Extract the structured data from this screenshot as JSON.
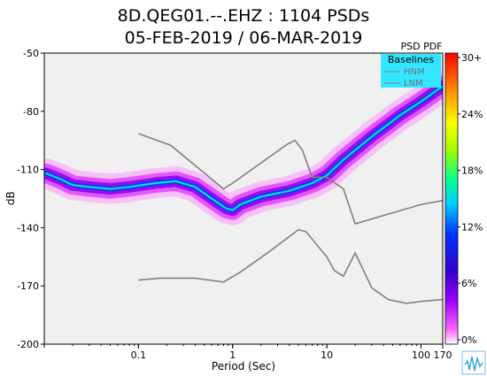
{
  "window": {
    "title_line1": "8D.QEG01.--.EHZ : 1104 PSDs",
    "title_line2": "05-FEB-2019 / 06-MAR-2019"
  },
  "colorbar": {
    "title": "PSD PDF",
    "ticks": [
      "30+",
      "24%",
      "18%",
      "12%",
      "6%",
      "0%"
    ]
  },
  "legend": {
    "title": "Baselines",
    "items": [
      "HNM",
      "LNM"
    ]
  },
  "chart_data": {
    "type": "heatmap",
    "title": "8D.QEG01.--.EHZ : 1104 PSDs",
    "subtitle": "05-FEB-2019 / 06-MAR-2019",
    "xlabel": "Period (Sec)",
    "ylabel": "dB",
    "xscale": "log",
    "xlim": [
      0.01,
      170
    ],
    "ylim": [
      -200,
      -50
    ],
    "xticks": [
      0.1,
      1,
      10,
      100,
      170
    ],
    "xtick_labels": [
      "0.1",
      "1",
      "10",
      "100",
      "170"
    ],
    "yticks": [
      -50,
      -80,
      -110,
      -140,
      -170,
      -200
    ],
    "ytick_labels": [
      "-50",
      "-80",
      "-110",
      "-140",
      "-170",
      "-200"
    ],
    "colorbar_range_percent": [
      0,
      30
    ],
    "pdf_mode_curve": [
      [
        0.0105,
        -112
      ],
      [
        0.015,
        -115
      ],
      [
        0.02,
        -118
      ],
      [
        0.03,
        -119
      ],
      [
        0.05,
        -120
      ],
      [
        0.08,
        -119
      ],
      [
        0.15,
        -117
      ],
      [
        0.25,
        -116
      ],
      [
        0.4,
        -119
      ],
      [
        0.6,
        -125
      ],
      [
        0.85,
        -130
      ],
      [
        1.0,
        -131
      ],
      [
        1.2,
        -128
      ],
      [
        2,
        -124
      ],
      [
        4,
        -121
      ],
      [
        7,
        -117
      ],
      [
        10,
        -113
      ],
      [
        15,
        -105
      ],
      [
        30,
        -93
      ],
      [
        60,
        -82
      ],
      [
        100,
        -75
      ],
      [
        170,
        -67
      ]
    ],
    "series": [
      {
        "name": "HNM",
        "values": [
          [
            0.1,
            -91.5
          ],
          [
            0.22,
            -97.5
          ],
          [
            0.8,
            -120
          ],
          [
            1.0,
            -117
          ],
          [
            3.8,
            -97
          ],
          [
            4.6,
            -95
          ],
          [
            5.5,
            -100
          ],
          [
            7.0,
            -114
          ],
          [
            10,
            -114
          ],
          [
            15,
            -120
          ],
          [
            20,
            -138
          ],
          [
            100,
            -128
          ],
          [
            170,
            -126
          ]
        ]
      },
      {
        "name": "LNM",
        "values": [
          [
            0.1,
            -167
          ],
          [
            0.17,
            -166
          ],
          [
            0.4,
            -166
          ],
          [
            0.8,
            -168
          ],
          [
            1.2,
            -163
          ],
          [
            2.5,
            -152
          ],
          [
            5.0,
            -141
          ],
          [
            6.0,
            -142
          ],
          [
            10,
            -155
          ],
          [
            12,
            -162
          ],
          [
            15,
            -165
          ],
          [
            20,
            -153
          ],
          [
            30,
            -171
          ],
          [
            45,
            -177
          ],
          [
            70,
            -179
          ],
          [
            100,
            -178
          ],
          [
            170,
            -177
          ]
        ]
      }
    ],
    "colors": {
      "hnm": "#808080",
      "lnm": "#808080",
      "legend_bg": "#33e6ff",
      "background": "#f0f0f0"
    }
  }
}
